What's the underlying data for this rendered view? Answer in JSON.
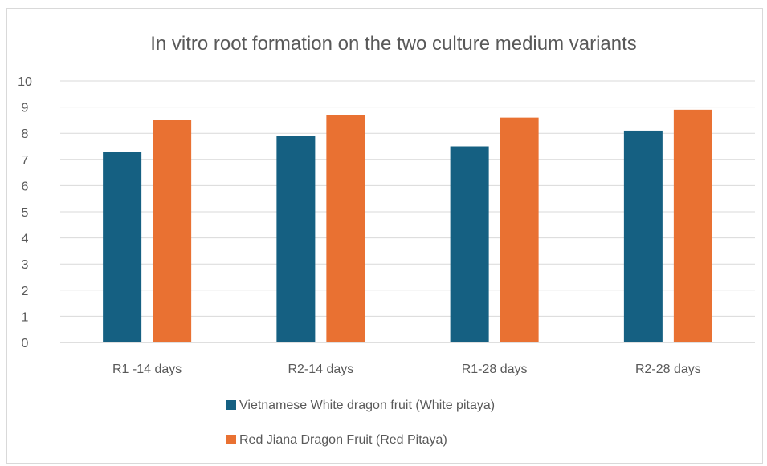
{
  "chart_data": {
    "type": "bar",
    "title": "In vitro root formation on the two culture medium variants",
    "categories": [
      "R1 -14 days",
      "R2-14 days",
      "R1-28 days",
      "R2-28 days"
    ],
    "series": [
      {
        "name": "Vietnamese White dragon fruit (White pitaya)",
        "color": "#156082",
        "values": [
          7.3,
          7.9,
          7.5,
          8.1
        ]
      },
      {
        "name": "Red Jiana Dragon Fruit (Red Pitaya)",
        "color": "#E97132",
        "values": [
          8.5,
          8.7,
          8.6,
          8.9
        ]
      }
    ],
    "ylim": [
      0,
      10
    ],
    "yticks": [
      0,
      1,
      2,
      3,
      4,
      5,
      6,
      7,
      8,
      9,
      10
    ],
    "grid": true,
    "legend_position": "bottom",
    "xlabel": "",
    "ylabel": ""
  }
}
